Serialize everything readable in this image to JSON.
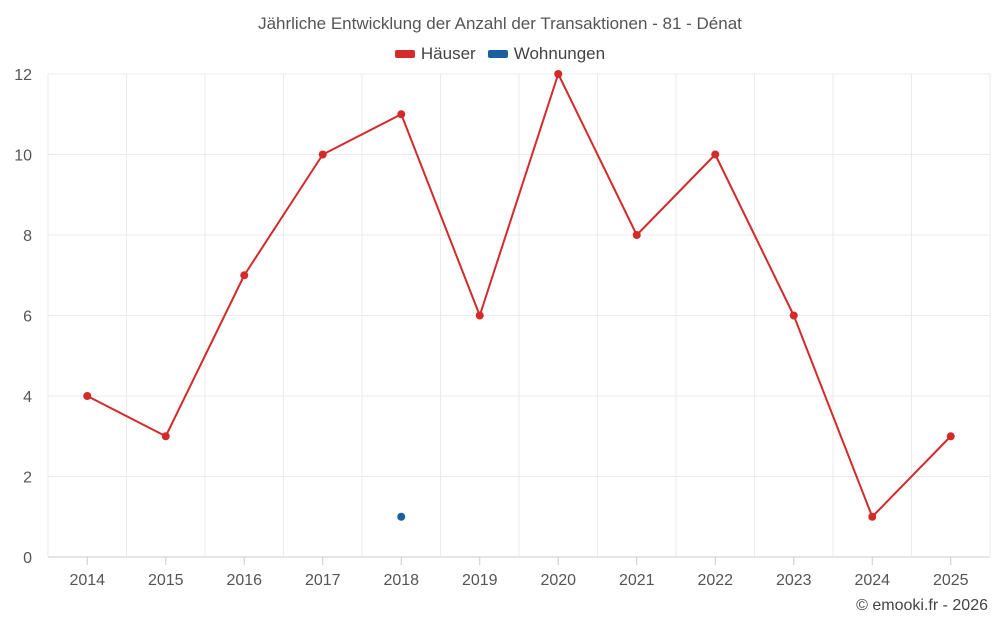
{
  "colors": {
    "haeuser": "#d42a2a",
    "wohnungen": "#1a5fa0",
    "grid": "#ebebeb",
    "axis": "#cccccc"
  },
  "credit": "© emooki.fr - 2026",
  "chart_data": {
    "type": "line",
    "title": "Jährliche Entwicklung der Anzahl der Transaktionen - 81 - Dénat",
    "xlabel": "",
    "ylabel": "",
    "categories": [
      "2014",
      "2015",
      "2016",
      "2017",
      "2018",
      "2019",
      "2020",
      "2021",
      "2022",
      "2023",
      "2024",
      "2025"
    ],
    "ylim": [
      0,
      12
    ],
    "yticks": [
      0,
      2,
      4,
      6,
      8,
      10,
      12
    ],
    "grid": true,
    "legend_position": "top-center",
    "series": [
      {
        "name": "Häuser",
        "color": "#d42a2a",
        "values": [
          4,
          3,
          7,
          10,
          11,
          6,
          12,
          8,
          10,
          6,
          1,
          3
        ]
      },
      {
        "name": "Wohnungen",
        "color": "#1a5fa0",
        "values": [
          null,
          null,
          null,
          null,
          1,
          null,
          null,
          null,
          null,
          null,
          null,
          null
        ]
      }
    ]
  }
}
